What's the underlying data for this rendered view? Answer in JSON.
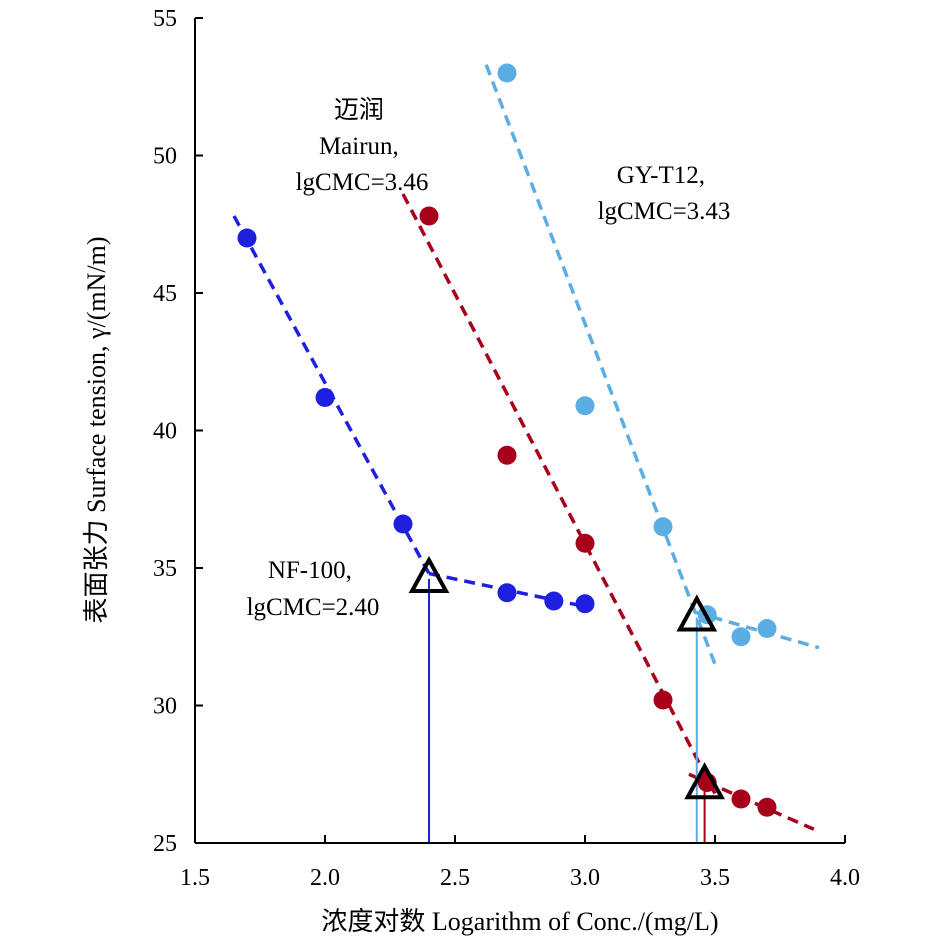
{
  "chart_data": {
    "type": "scatter",
    "xlabel": "浓度对数 Logarithm of Conc./(mg/L)",
    "ylabel": "表面张力 Surface tension, γ/(mN/m)",
    "xlim": [
      1.5,
      4.0
    ],
    "ylim": [
      25,
      55
    ],
    "x_ticks": [
      1.5,
      2.0,
      2.5,
      3.0,
      3.5,
      4.0
    ],
    "x_tick_labels": [
      "1.5",
      "2.0",
      "2.5",
      "3.0",
      "3.5",
      "4.0"
    ],
    "y_ticks": [
      25,
      30,
      35,
      40,
      45,
      50,
      55
    ],
    "y_tick_labels": [
      "25",
      "30",
      "35",
      "40",
      "45",
      "50",
      "55"
    ],
    "grid": false,
    "series": [
      {
        "key": "nf",
        "color": "#1f1fe0",
        "points": [
          [
            1.7,
            47.0
          ],
          [
            2.0,
            41.2
          ],
          [
            2.3,
            36.6
          ],
          [
            2.7,
            34.1
          ],
          [
            2.88,
            33.8
          ],
          [
            3.0,
            33.7
          ]
        ],
        "fit_lines": [
          [
            [
              1.65,
              47.8
            ],
            [
              2.4,
              34.8
            ]
          ],
          [
            [
              2.4,
              34.8
            ],
            [
              3.0,
              33.6
            ]
          ]
        ],
        "cmc": {
          "x": 2.4,
          "y": 34.6
        },
        "annotation": [
          "NF-100,",
          "lgCMC=2.40"
        ]
      },
      {
        "key": "mairun",
        "color": "#a8001a",
        "points": [
          [
            2.4,
            47.8
          ],
          [
            2.7,
            39.1
          ],
          [
            3.0,
            35.9
          ],
          [
            3.3,
            30.2
          ],
          [
            3.47,
            27.2
          ],
          [
            3.6,
            26.6
          ],
          [
            3.7,
            26.3
          ]
        ],
        "fit_lines": [
          [
            [
              2.3,
              48.6
            ],
            [
              3.5,
              26.8
            ]
          ],
          [
            [
              3.4,
              27.5
            ],
            [
              3.88,
              25.5
            ]
          ]
        ],
        "cmc": {
          "x": 3.46,
          "y": 27.1
        },
        "annotation": [
          "迈润",
          "Mairun,",
          "lgCMC=3.46"
        ]
      },
      {
        "key": "gy",
        "color": "#5aaee3",
        "points": [
          [
            2.7,
            53.0
          ],
          [
            3.0,
            40.9
          ],
          [
            3.3,
            36.5
          ],
          [
            3.47,
            33.3
          ],
          [
            3.6,
            32.5
          ],
          [
            3.7,
            32.8
          ]
        ],
        "fit_lines": [
          [
            [
              2.62,
              53.3
            ],
            [
              3.5,
              31.5
            ]
          ],
          [
            [
              3.42,
              33.4
            ],
            [
              3.9,
              32.1
            ]
          ]
        ],
        "cmc": {
          "x": 3.43,
          "y": 33.2
        },
        "annotation": [
          "GY-T12,",
          "lgCMC=3.43"
        ]
      }
    ]
  }
}
